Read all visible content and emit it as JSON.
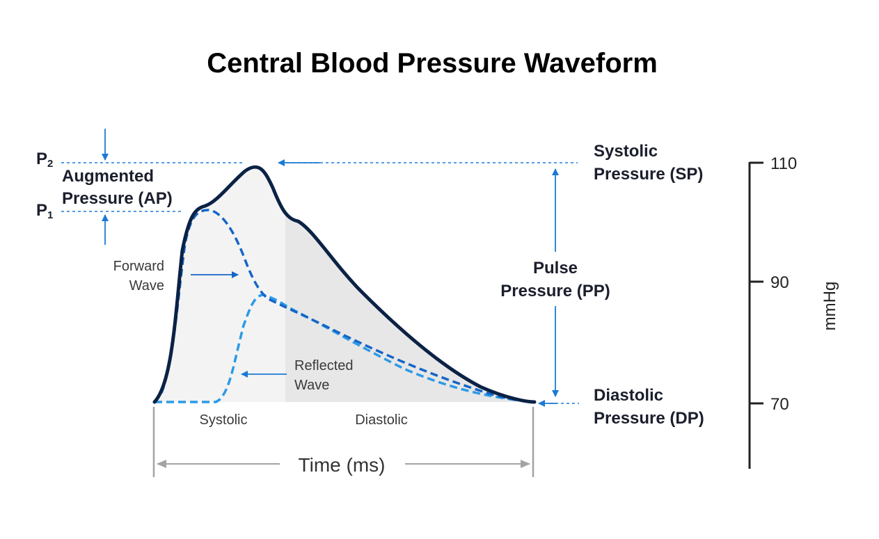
{
  "title": "Central Blood Pressure Waveform",
  "labels": {
    "p2": "P",
    "p2_sub": "2",
    "p1": "P",
    "p1_sub": "1",
    "augmented_line1": "Augmented",
    "augmented_line2": "Pressure (AP)",
    "systolic_pressure_line1": "Systolic",
    "systolic_pressure_line2": "Pressure (SP)",
    "diastolic_pressure_line1": "Diastolic",
    "diastolic_pressure_line2": "Pressure (DP)",
    "pulse_pressure_line1": "Pulse",
    "pulse_pressure_line2": "Pressure (PP)",
    "forward_wave_line1": "Forward",
    "forward_wave_line2": "Wave",
    "reflected_wave_line1": "Reflected",
    "reflected_wave_line2": "Wave",
    "systolic_phase": "Systolic",
    "diastolic_phase": "Diastolic",
    "time_axis": "Time (ms)"
  },
  "scale": {
    "unit": "mmHg",
    "ticks": [
      "110",
      "90",
      "70"
    ]
  },
  "colors": {
    "waveform": "#0b2245",
    "forward_wave": "#1565c8",
    "reflected_wave": "#2a9ae6",
    "arrow_blue": "#1a7ad6",
    "systolic_fill": "#f3f3f3",
    "diastolic_fill": "#e7e7e7",
    "time_axis": "#a3a3a3"
  }
}
